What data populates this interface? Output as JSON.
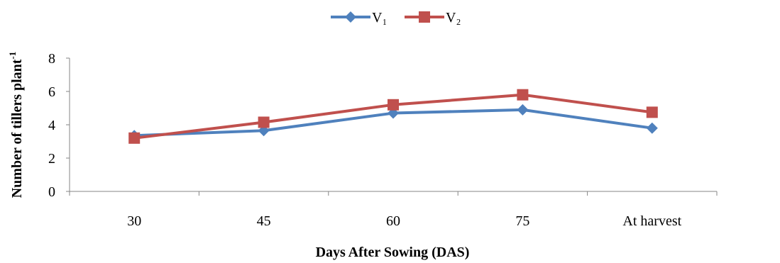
{
  "chart_data": {
    "type": "line",
    "title": "",
    "xlabel": "Days After Sowing (DAS)",
    "ylabel": "Number of tillers plant",
    "ylabel_superscript": "-1",
    "categories": [
      "30",
      "45",
      "60",
      "75",
      "At harvest"
    ],
    "ylim": [
      0,
      8
    ],
    "yticks": [
      "0",
      "2",
      "4",
      "6",
      "8"
    ],
    "grid": false,
    "legend_position": "top-center",
    "series": [
      {
        "name": "V₁",
        "color": "#4F81BD",
        "marker": "diamond",
        "values": [
          3.35,
          3.65,
          4.7,
          4.9,
          3.8
        ]
      },
      {
        "name": "V₂",
        "color": "#C0504D",
        "marker": "square",
        "values": [
          3.2,
          4.15,
          5.2,
          5.8,
          4.75
        ]
      }
    ]
  }
}
